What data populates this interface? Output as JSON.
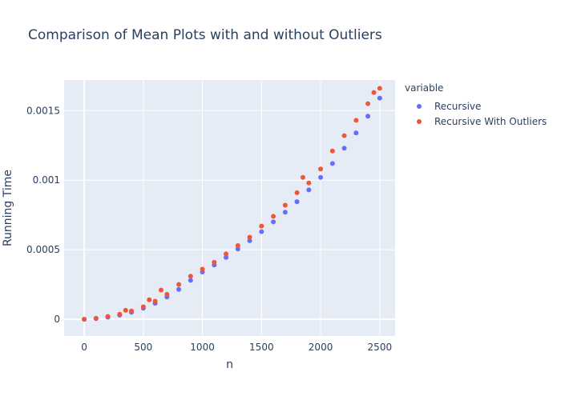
{
  "chart_data": {
    "type": "scatter",
    "title": "Comparison of Mean Plots with and without Outliers",
    "xlabel": "n",
    "ylabel": "Running Time",
    "xlim": [
      -170,
      2630
    ],
    "ylim": [
      -0.00012,
      0.00172
    ],
    "x_ticks": [
      0,
      500,
      1000,
      1500,
      2000,
      2500
    ],
    "x_tick_labels": [
      "0",
      "500",
      "1000",
      "1500",
      "2000",
      "2500"
    ],
    "y_ticks": [
      0,
      0.0005,
      0.001,
      0.0015
    ],
    "y_tick_labels": [
      "0",
      "0.0005",
      "0.001",
      "0.0015"
    ],
    "grid": true,
    "legend_title": "variable",
    "legend_position": "top-right",
    "plot_background": "#e5ecf6",
    "series": [
      {
        "name": "Recursive",
        "color": "#636efa",
        "x": [
          0,
          100,
          200,
          300,
          400,
          500,
          600,
          700,
          800,
          900,
          1000,
          1100,
          1200,
          1300,
          1400,
          1500,
          1600,
          1700,
          1800,
          1900,
          2000,
          2100,
          2200,
          2300,
          2400,
          2500
        ],
        "y": [
          0,
          5e-06,
          1.5e-05,
          3e-05,
          5e-05,
          8e-05,
          0.000115,
          0.00016,
          0.000215,
          0.00028,
          0.00034,
          0.00039,
          0.000445,
          0.000505,
          0.000565,
          0.00063,
          0.0007,
          0.00077,
          0.000845,
          0.00093,
          0.00102,
          0.00112,
          0.00123,
          0.00134,
          0.00146,
          0.00159
        ]
      },
      {
        "name": "Recursive With Outliers",
        "color": "#ef553b",
        "x": [
          0,
          100,
          200,
          300,
          350,
          400,
          500,
          550,
          600,
          650,
          700,
          800,
          900,
          1000,
          1100,
          1200,
          1300,
          1400,
          1500,
          1600,
          1700,
          1800,
          1850,
          1900,
          2000,
          2100,
          2200,
          2300,
          2400,
          2450,
          2500
        ],
        "y": [
          0,
          7e-06,
          2e-05,
          3.7e-05,
          6.5e-05,
          6e-05,
          9e-05,
          0.00014,
          0.00013,
          0.00021,
          0.00018,
          0.00025,
          0.00031,
          0.00036,
          0.00041,
          0.00047,
          0.00053,
          0.00059,
          0.00067,
          0.00074,
          0.00082,
          0.00091,
          0.00102,
          0.00098,
          0.00108,
          0.00121,
          0.00132,
          0.00143,
          0.00155,
          0.00163,
          0.00166
        ]
      }
    ]
  }
}
